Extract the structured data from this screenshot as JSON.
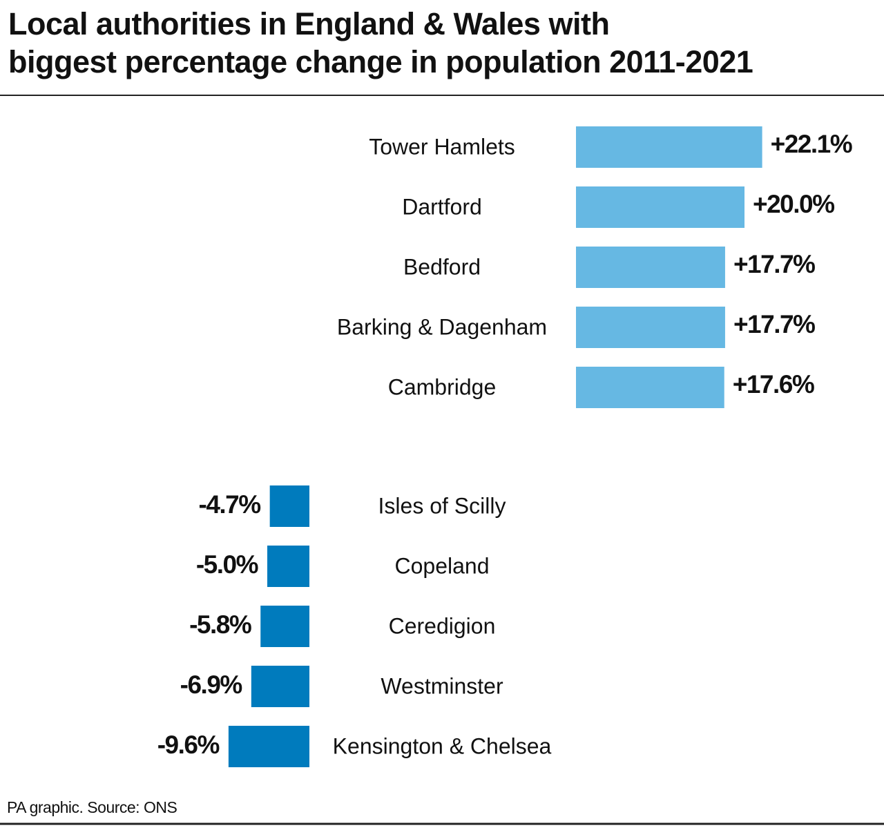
{
  "title": [
    "Local authorities in England & Wales with",
    "biggest percentage change in population 2011-2021"
  ],
  "source": "PA graphic. Source: ONS",
  "chart_data": [
    {
      "type": "bar",
      "orientation": "horizontal",
      "color": "#66b8e3",
      "categories": [
        "Tower Hamlets",
        "Dartford",
        "Bedford",
        "Barking & Dagenham",
        "Cambridge"
      ],
      "values": [
        22.1,
        20.0,
        17.7,
        17.7,
        17.6
      ],
      "value_labels": [
        "+22.1%",
        "+20.0%",
        "+17.7%",
        "+17.7%",
        "+17.6%"
      ]
    },
    {
      "type": "bar",
      "orientation": "horizontal",
      "color": "#007bbd",
      "categories": [
        "Isles of Scilly",
        "Copeland",
        "Ceredigion",
        "Westminster",
        "Kensington & Chelsea"
      ],
      "values": [
        -4.7,
        -5.0,
        -5.8,
        -6.9,
        -9.6
      ],
      "value_labels": [
        "-4.7%",
        "-5.0%",
        "-5.8%",
        "-6.9%",
        "-9.6%"
      ]
    }
  ]
}
